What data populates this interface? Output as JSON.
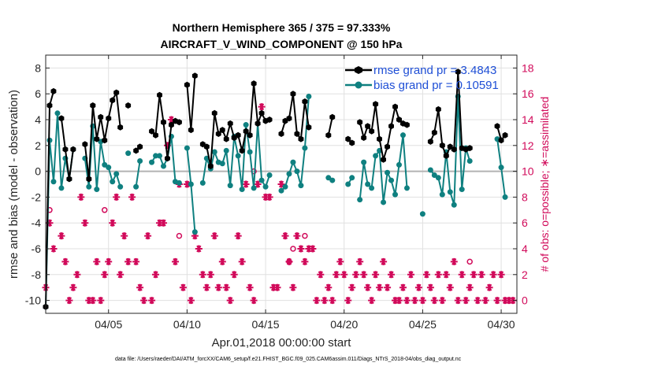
{
  "chart_data": {
    "type": "line",
    "title_line1": "Northern Hemisphere 365 / 375 = 97.333%",
    "title_line2": "AIRCRAFT_V_WIND_COMPONENT @ 150 hPa",
    "xlabel": "Apr.01,2018 00:00:00 start",
    "ylabel_left": "rmse and bias (model - observation)",
    "ylabel_right": "# of obs: o=possible; ∗=assimilated",
    "footnote": "data file: /Users/raeder/DAI/ATM_forcXX/CAM6_setup/f.e21.FHIST_BGC.f09_025.CAM6assim.011/Diags_NTrS_2018-04/obs_diag_output.nc",
    "xlim": [
      1.0,
      31.0
    ],
    "ylim_left": [
      -11,
      9
    ],
    "ylim_right": [
      -1,
      19
    ],
    "x_ticks": [
      5,
      10,
      15,
      20,
      25,
      30
    ],
    "x_tick_labels": [
      "04/05",
      "04/10",
      "04/15",
      "04/20",
      "04/25",
      "04/30"
    ],
    "y_left_ticks": [
      -10,
      -8,
      -6,
      -4,
      -2,
      0,
      2,
      4,
      6,
      8
    ],
    "y_left_tick_labels": [
      "-10",
      "-8",
      "-6",
      "-4",
      "-2",
      "0",
      "2",
      "4",
      "6",
      "8"
    ],
    "y_right_ticks": [
      0,
      2,
      4,
      6,
      8,
      10,
      12,
      14,
      16,
      18
    ],
    "y_right_tick_labels": [
      "0",
      "2",
      "4",
      "6",
      "8",
      "10",
      "12",
      "14",
      "16",
      "18"
    ],
    "grid": true,
    "zero_line": 0,
    "legend_position": "top-right",
    "colors": {
      "rmse": "#000000",
      "bias": "#0f8080",
      "obs": "#d10a5a",
      "zero": "#b3b3b3",
      "grid": "#e0e0e0"
    },
    "series": [
      {
        "name": "rmse",
        "legend_label": "rmse grand pr = 3.4843",
        "points": [
          [
            1.0,
            -10.5
          ],
          [
            1.25,
            5.1
          ],
          [
            1.5,
            6.2
          ],
          [
            2.0,
            4.1
          ],
          [
            2.25,
            1.7
          ],
          [
            2.5,
            -0.6
          ],
          [
            2.75,
            1.7
          ],
          [
            3.5,
            2.1
          ],
          [
            3.75,
            -0.6
          ],
          [
            4.0,
            5.1
          ],
          [
            4.25,
            2.5
          ],
          [
            4.5,
            4.2
          ],
          [
            4.75,
            2.4
          ],
          [
            5.0,
            4.1
          ],
          [
            5.25,
            5.5
          ],
          [
            5.5,
            6.1
          ],
          [
            5.75,
            3.4
          ],
          [
            6.25,
            5.1
          ],
          [
            6.75,
            1.6
          ],
          [
            7.0,
            1.9
          ],
          [
            7.75,
            3.1
          ],
          [
            8.0,
            2.8
          ],
          [
            8.25,
            5.9
          ],
          [
            8.5,
            3.8
          ],
          [
            8.75,
            1.0
          ],
          [
            9.0,
            3.6
          ],
          [
            9.25,
            3.9
          ],
          [
            9.5,
            3.8
          ],
          [
            10.0,
            6.7
          ],
          [
            10.25,
            3.2
          ],
          [
            10.5,
            7.4
          ],
          [
            11.0,
            2.1
          ],
          [
            11.25,
            1.9
          ],
          [
            11.5,
            0.4
          ],
          [
            11.75,
            4.5
          ],
          [
            12.0,
            2.9
          ],
          [
            12.25,
            3.2
          ],
          [
            12.5,
            2.5
          ],
          [
            12.75,
            3.7
          ],
          [
            13.0,
            2.6
          ],
          [
            13.25,
            2.8
          ],
          [
            13.5,
            1.6
          ],
          [
            13.75,
            3.1
          ],
          [
            14.0,
            2.8
          ],
          [
            14.25,
            6.8
          ],
          [
            14.5,
            3.7
          ],
          [
            14.75,
            4.5
          ],
          [
            15.0,
            3.9
          ],
          [
            15.25,
            4.0
          ],
          [
            16.0,
            2.9
          ],
          [
            16.25,
            3.9
          ],
          [
            16.5,
            4.1
          ],
          [
            16.75,
            6.0
          ],
          [
            17.0,
            2.9
          ],
          [
            17.25,
            2.5
          ],
          [
            17.5,
            5.4
          ],
          [
            17.75,
            3.4
          ],
          [
            19.0,
            2.8
          ],
          [
            19.25,
            4.2
          ],
          [
            20.25,
            2.5
          ],
          [
            20.5,
            2.2
          ],
          [
            21.0,
            3.8
          ],
          [
            21.25,
            2.6
          ],
          [
            21.5,
            3.5
          ],
          [
            21.75,
            3.1
          ],
          [
            22.0,
            5.2
          ],
          [
            22.25,
            2.5
          ],
          [
            22.5,
            0.9
          ],
          [
            22.75,
            1.9
          ],
          [
            23.0,
            3.5
          ],
          [
            23.25,
            5.0
          ],
          [
            23.5,
            4.0
          ],
          [
            23.75,
            3.7
          ],
          [
            24.0,
            3.6
          ],
          [
            25.5,
            2.3
          ],
          [
            25.75,
            3.0
          ],
          [
            26.0,
            4.8
          ],
          [
            26.25,
            2.0
          ],
          [
            26.5,
            1.2
          ],
          [
            26.75,
            1.9
          ],
          [
            27.0,
            1.7
          ],
          [
            27.25,
            7.7
          ],
          [
            27.5,
            1.8
          ],
          [
            27.75,
            1.7
          ],
          [
            28.0,
            1.8
          ],
          [
            29.75,
            3.5
          ],
          [
            30.0,
            2.4
          ],
          [
            30.25,
            2.8
          ]
        ]
      },
      {
        "name": "bias",
        "legend_label": "bias grand pr = 0.10591",
        "points": [
          [
            1.0,
            -10.5
          ],
          [
            1.25,
            2.4
          ],
          [
            1.5,
            -0.8
          ],
          [
            1.75,
            4.5
          ],
          [
            2.0,
            -1.3
          ],
          [
            2.25,
            1.0
          ],
          [
            2.5,
            -0.6
          ],
          [
            2.75,
            1.7
          ],
          [
            3.5,
            1.0
          ],
          [
            3.75,
            -1.2
          ],
          [
            4.0,
            3.5
          ],
          [
            4.25,
            -1.4
          ],
          [
            4.5,
            2.3
          ],
          [
            4.75,
            0.5
          ],
          [
            5.0,
            0.3
          ],
          [
            5.25,
            -0.8
          ],
          [
            5.5,
            -0.2
          ],
          [
            5.75,
            -1.2
          ],
          [
            6.25,
            1.4
          ],
          [
            6.75,
            -1.2
          ],
          [
            7.0,
            0.8
          ],
          [
            7.75,
            0.7
          ],
          [
            8.0,
            1.2
          ],
          [
            8.25,
            1.2
          ],
          [
            8.5,
            0.4
          ],
          [
            8.75,
            1.0
          ],
          [
            9.0,
            2.7
          ],
          [
            9.25,
            -0.8
          ],
          [
            9.5,
            -0.9
          ],
          [
            10.0,
            1.8
          ],
          [
            10.25,
            -1.0
          ],
          [
            10.5,
            -4.7
          ],
          [
            11.0,
            -0.9
          ],
          [
            11.25,
            1.0
          ],
          [
            11.5,
            0.2
          ],
          [
            11.75,
            1.5
          ],
          [
            12.0,
            0.7
          ],
          [
            12.25,
            0.6
          ],
          [
            12.5,
            1.6
          ],
          [
            12.75,
            -1.1
          ],
          [
            13.0,
            2.7
          ],
          [
            13.25,
            1.2
          ],
          [
            13.5,
            -1.4
          ],
          [
            13.75,
            3.6
          ],
          [
            14.0,
            1.5
          ],
          [
            14.25,
            -1.3
          ],
          [
            14.5,
            3.7
          ],
          [
            14.75,
            -0.7
          ],
          [
            15.0,
            -1.2
          ],
          [
            15.25,
            -0.3
          ],
          [
            16.0,
            -1.5
          ],
          [
            16.25,
            -1.2
          ],
          [
            16.5,
            -0.2
          ],
          [
            16.75,
            0.7
          ],
          [
            17.0,
            0.0
          ],
          [
            17.25,
            -1.1
          ],
          [
            17.5,
            1.8
          ],
          [
            17.75,
            5.8
          ],
          [
            19.0,
            -0.5
          ],
          [
            19.25,
            -0.7
          ],
          [
            20.25,
            -1.0
          ],
          [
            20.5,
            -0.5
          ],
          [
            21.0,
            -2.2
          ],
          [
            21.25,
            0.7
          ],
          [
            21.5,
            -1.0
          ],
          [
            21.75,
            -1.3
          ],
          [
            22.0,
            1.2
          ],
          [
            22.25,
            1.6
          ],
          [
            22.5,
            -2.4
          ],
          [
            22.75,
            -0.1
          ],
          [
            23.0,
            -0.7
          ],
          [
            23.25,
            -1.8
          ],
          [
            23.5,
            0.5
          ],
          [
            23.75,
            2.8
          ],
          [
            24.0,
            -1.3
          ],
          [
            25.0,
            -3.3
          ],
          [
            25.5,
            0.1
          ],
          [
            25.75,
            -0.3
          ],
          [
            26.0,
            -0.5
          ],
          [
            26.25,
            -1.8
          ],
          [
            26.5,
            1.5
          ],
          [
            26.75,
            -1.6
          ],
          [
            27.0,
            -2.6
          ],
          [
            27.25,
            5.8
          ],
          [
            27.5,
            -1.4
          ],
          [
            27.75,
            1.8
          ],
          [
            28.0,
            0.8
          ],
          [
            29.75,
            2.5
          ],
          [
            30.0,
            0.3
          ],
          [
            30.25,
            -2.0
          ]
        ]
      },
      {
        "name": "obs_assimilated",
        "points": [
          [
            1.0,
            1
          ],
          [
            1.25,
            6
          ],
          [
            1.5,
            4
          ],
          [
            2.0,
            5
          ],
          [
            2.25,
            3
          ],
          [
            2.5,
            0
          ],
          [
            2.75,
            1
          ],
          [
            3.0,
            2
          ],
          [
            3.25,
            8
          ],
          [
            3.5,
            6
          ],
          [
            3.75,
            0
          ],
          [
            4.0,
            0
          ],
          [
            4.25,
            3
          ],
          [
            4.5,
            0
          ],
          [
            4.75,
            2
          ],
          [
            5.0,
            3
          ],
          [
            5.25,
            6
          ],
          [
            5.5,
            8
          ],
          [
            5.75,
            2
          ],
          [
            6.0,
            5
          ],
          [
            6.25,
            3
          ],
          [
            6.5,
            8
          ],
          [
            6.75,
            3
          ],
          [
            7.0,
            1
          ],
          [
            7.25,
            0
          ],
          [
            7.5,
            5
          ],
          [
            7.75,
            0
          ],
          [
            8.0,
            2
          ],
          [
            8.25,
            6
          ],
          [
            8.5,
            6
          ],
          [
            8.75,
            12
          ],
          [
            9.0,
            14
          ],
          [
            9.25,
            3
          ],
          [
            9.5,
            9
          ],
          [
            9.75,
            1
          ],
          [
            10.0,
            9
          ],
          [
            10.25,
            0
          ],
          [
            10.5,
            5
          ],
          [
            10.75,
            4
          ],
          [
            11.0,
            2
          ],
          [
            11.25,
            1
          ],
          [
            11.5,
            2
          ],
          [
            11.75,
            5
          ],
          [
            12.0,
            1
          ],
          [
            12.25,
            3
          ],
          [
            12.5,
            1
          ],
          [
            12.75,
            0
          ],
          [
            13.0,
            2
          ],
          [
            13.25,
            5
          ],
          [
            13.5,
            3
          ],
          [
            13.75,
            9
          ],
          [
            14.0,
            1
          ],
          [
            14.25,
            0
          ],
          [
            14.5,
            9
          ],
          [
            14.75,
            15
          ],
          [
            15.0,
            8
          ],
          [
            15.25,
            8
          ],
          [
            15.5,
            1
          ],
          [
            15.75,
            1
          ],
          [
            16.0,
            9
          ],
          [
            16.25,
            5
          ],
          [
            16.5,
            3
          ],
          [
            16.75,
            1
          ],
          [
            17.0,
            5
          ],
          [
            17.25,
            4
          ],
          [
            17.5,
            3
          ],
          [
            17.75,
            4
          ],
          [
            18.0,
            4
          ],
          [
            18.25,
            0
          ],
          [
            18.5,
            2
          ],
          [
            18.75,
            0
          ],
          [
            19.0,
            1
          ],
          [
            19.25,
            0
          ],
          [
            19.5,
            2
          ],
          [
            19.75,
            3
          ],
          [
            20.0,
            2
          ],
          [
            20.25,
            0
          ],
          [
            20.5,
            1
          ],
          [
            20.75,
            2
          ],
          [
            21.0,
            3
          ],
          [
            21.25,
            2
          ],
          [
            21.5,
            1
          ],
          [
            21.75,
            0
          ],
          [
            22.0,
            2
          ],
          [
            22.25,
            1
          ],
          [
            22.5,
            3
          ],
          [
            22.75,
            1
          ],
          [
            23.0,
            2
          ],
          [
            23.25,
            0
          ],
          [
            23.5,
            0
          ],
          [
            23.75,
            1
          ],
          [
            24.0,
            0
          ],
          [
            24.25,
            2
          ],
          [
            24.5,
            0
          ],
          [
            24.75,
            1
          ],
          [
            25.0,
            0
          ],
          [
            25.25,
            2
          ],
          [
            25.5,
            1
          ],
          [
            25.75,
            0
          ],
          [
            26.0,
            2
          ],
          [
            26.25,
            0
          ],
          [
            26.5,
            2
          ],
          [
            26.75,
            1
          ],
          [
            27.0,
            3
          ],
          [
            27.25,
            0
          ],
          [
            27.5,
            2
          ],
          [
            27.75,
            0
          ],
          [
            28.0,
            1
          ],
          [
            28.25,
            2
          ],
          [
            28.5,
            0
          ],
          [
            28.75,
            2
          ],
          [
            29.0,
            0
          ],
          [
            29.25,
            1
          ],
          [
            29.5,
            2
          ],
          [
            29.75,
            0
          ],
          [
            30.0,
            2
          ],
          [
            30.25,
            0
          ],
          [
            30.5,
            0
          ],
          [
            30.75,
            0
          ]
        ]
      },
      {
        "name": "obs_possible",
        "points": [
          [
            1.25,
            7
          ],
          [
            4.75,
            7
          ],
          [
            9.5,
            5
          ],
          [
            14.25,
            10
          ],
          [
            16.5,
            3
          ],
          [
            16.75,
            4
          ],
          [
            17.5,
            5
          ],
          [
            28.0,
            3
          ]
        ]
      }
    ]
  }
}
